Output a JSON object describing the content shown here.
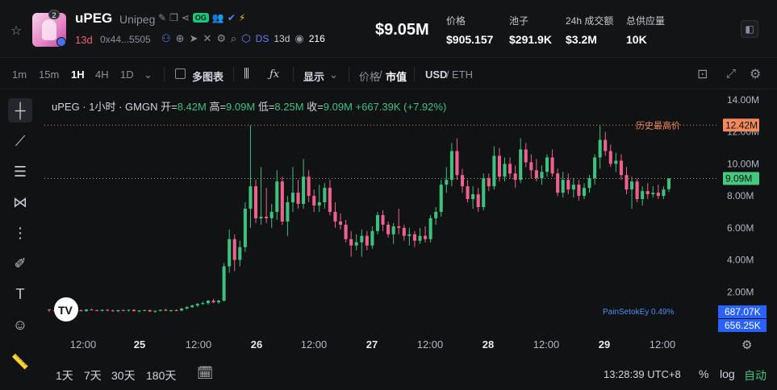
{
  "header": {
    "token_symbol": "uPEG",
    "token_name": "Unipeg",
    "avatar_badge": "2",
    "og_badge": "OG",
    "age": "13d",
    "address": "0x44...5505",
    "ds_label": "DS",
    "ds_age": "13d",
    "views": "216",
    "price": "$9.05M",
    "stats": [
      {
        "label": "价格",
        "value": "$905.157"
      },
      {
        "label": "池子",
        "value": "$291.9K"
      },
      {
        "label": "24h 成交额",
        "value": "$3.2M"
      },
      {
        "label": "总供应量",
        "value": "10K"
      }
    ]
  },
  "toolbar": {
    "intervals": [
      "1m",
      "15m",
      "1H",
      "4H",
      "1D"
    ],
    "active_interval": "1H",
    "multi_chart": "多图表",
    "display": "显示",
    "price_label": "价格",
    "slash": "/",
    "mcap_label": "市值",
    "usd_label": "USD",
    "eth_label": "ETH"
  },
  "legend": {
    "title": "uPEG · 1小时 · GMGN",
    "open_label": "开=",
    "open": "8.42M",
    "high_label": "高=",
    "high": "9.09M",
    "low_label": "低=",
    "low": "8.25M",
    "close_label": "收=",
    "close": "9.09M",
    "change": "+667.39K (+7.92%)"
  },
  "colors": {
    "up": "#3ec07f",
    "down": "#f0618d",
    "ath": "#f08a5d",
    "price_tag": "#46c97f",
    "blue_tag": "#2962ff"
  },
  "chart_data": {
    "type": "candlestick",
    "ylim": [
      0,
      14.6
    ],
    "y_ticks": [
      "14.00M",
      "12.00M",
      "10.00M",
      "8.00M",
      "6.00M",
      "4.00M",
      "2.00M"
    ],
    "y_tick_values": [
      14,
      12,
      10,
      8,
      6,
      4,
      2
    ],
    "x_ticks": [
      "12:00",
      "25",
      "12:00",
      "26",
      "12:00",
      "27",
      "12:00",
      "28",
      "12:00",
      "29",
      "12:00"
    ],
    "ath_label": "历史最高价",
    "ath_value": 12.42,
    "ath_tag": "12.42M",
    "current_value": 9.09,
    "current_tag": "9.09M",
    "marker_text": "PainSetokEy 0.49%",
    "marker_tag_1": "687.07K",
    "marker_tag_2": "656.25K",
    "candles": [
      [
        0.9,
        0.95,
        0.75,
        0.85
      ],
      [
        0.85,
        0.9,
        0.8,
        0.82
      ],
      [
        0.82,
        0.9,
        0.78,
        0.88
      ],
      [
        0.88,
        0.92,
        0.8,
        0.84
      ],
      [
        0.84,
        0.92,
        0.8,
        0.9
      ],
      [
        0.9,
        0.95,
        0.82,
        0.86
      ],
      [
        0.86,
        0.9,
        0.78,
        0.8
      ],
      [
        0.8,
        0.92,
        0.76,
        0.9
      ],
      [
        0.9,
        0.95,
        0.84,
        0.86
      ],
      [
        0.86,
        0.9,
        0.8,
        0.82
      ],
      [
        0.82,
        0.9,
        0.78,
        0.88
      ],
      [
        0.88,
        0.92,
        0.8,
        0.84
      ],
      [
        0.84,
        0.9,
        0.76,
        0.8
      ],
      [
        0.8,
        0.88,
        0.74,
        0.86
      ],
      [
        0.86,
        0.92,
        0.8,
        0.84
      ],
      [
        0.84,
        0.9,
        0.78,
        0.88
      ],
      [
        0.88,
        0.92,
        0.78,
        0.8
      ],
      [
        0.8,
        0.86,
        0.72,
        0.84
      ],
      [
        0.84,
        0.9,
        0.8,
        0.86
      ],
      [
        0.86,
        0.9,
        0.76,
        0.78
      ],
      [
        0.78,
        0.84,
        0.7,
        0.82
      ],
      [
        0.82,
        0.9,
        0.78,
        0.88
      ],
      [
        0.88,
        0.95,
        0.8,
        0.82
      ],
      [
        0.82,
        0.88,
        0.76,
        0.86
      ],
      [
        0.86,
        0.92,
        0.8,
        0.84
      ],
      [
        0.84,
        1.0,
        0.8,
        0.96
      ],
      [
        0.96,
        1.1,
        0.9,
        1.05
      ],
      [
        1.05,
        1.2,
        1.0,
        1.15
      ],
      [
        1.15,
        1.3,
        1.05,
        1.25
      ],
      [
        1.25,
        1.4,
        1.2,
        1.3
      ],
      [
        1.3,
        1.5,
        1.2,
        1.45
      ],
      [
        1.45,
        1.55,
        1.3,
        1.35
      ],
      [
        1.35,
        1.5,
        1.25,
        1.45
      ],
      [
        1.45,
        3.8,
        1.4,
        3.6
      ],
      [
        3.6,
        5.9,
        3.2,
        5.3
      ],
      [
        5.3,
        5.6,
        3.3,
        4.0
      ],
      [
        4.0,
        5.2,
        3.6,
        4.8
      ],
      [
        4.8,
        7.6,
        4.5,
        7.2
      ],
      [
        7.2,
        12.4,
        6.0,
        8.6
      ],
      [
        8.6,
        9.0,
        6.3,
        6.6
      ],
      [
        6.6,
        9.8,
        6.2,
        6.7
      ],
      [
        6.7,
        8.5,
        6.3,
        6.6
      ],
      [
        6.6,
        7.5,
        6.0,
        7.0
      ],
      [
        7.0,
        9.6,
        6.5,
        8.9
      ],
      [
        8.9,
        9.2,
        6.2,
        6.4
      ],
      [
        6.4,
        8.0,
        5.5,
        7.6
      ],
      [
        7.6,
        9.8,
        7.0,
        8.2
      ],
      [
        8.2,
        9.0,
        7.2,
        7.5
      ],
      [
        7.5,
        10.3,
        7.2,
        9.2
      ],
      [
        9.2,
        9.6,
        7.6,
        8.0
      ],
      [
        8.0,
        8.4,
        7.0,
        7.4
      ],
      [
        7.4,
        8.7,
        7.0,
        7.6
      ],
      [
        7.6,
        8.8,
        7.2,
        8.5
      ],
      [
        8.5,
        9.0,
        6.8,
        7.0
      ],
      [
        7.0,
        7.6,
        6.0,
        6.4
      ],
      [
        6.4,
        6.9,
        5.9,
        6.2
      ],
      [
        6.2,
        6.5,
        5.1,
        5.3
      ],
      [
        5.3,
        5.8,
        4.2,
        4.9
      ],
      [
        4.9,
        5.6,
        4.6,
        5.1
      ],
      [
        5.1,
        5.9,
        4.2,
        5.5
      ],
      [
        5.5,
        5.8,
        4.6,
        4.9
      ],
      [
        4.9,
        6.1,
        4.7,
        5.8
      ],
      [
        5.8,
        7.0,
        5.6,
        6.8
      ],
      [
        6.8,
        7.1,
        5.8,
        6.2
      ],
      [
        6.2,
        6.4,
        5.4,
        5.6
      ],
      [
        5.6,
        6.3,
        5.0,
        6.1
      ],
      [
        6.1,
        7.2,
        5.6,
        6.0
      ],
      [
        6.0,
        6.2,
        5.2,
        5.5
      ],
      [
        5.5,
        6.0,
        4.9,
        5.6
      ],
      [
        5.6,
        5.8,
        4.8,
        5.2
      ],
      [
        5.2,
        6.0,
        5.0,
        5.5
      ],
      [
        5.5,
        6.1,
        5.1,
        5.3
      ],
      [
        5.3,
        6.8,
        5.1,
        6.6
      ],
      [
        6.6,
        7.3,
        6.2,
        7.0
      ],
      [
        7.0,
        9.0,
        6.7,
        8.7
      ],
      [
        8.7,
        9.8,
        8.2,
        9.0
      ],
      [
        9.0,
        11.3,
        8.6,
        10.8
      ],
      [
        10.8,
        11.6,
        9.0,
        9.3
      ],
      [
        9.3,
        9.7,
        8.2,
        8.6
      ],
      [
        8.6,
        9.0,
        7.6,
        7.8
      ],
      [
        7.8,
        8.6,
        7.2,
        8.1
      ],
      [
        8.1,
        8.5,
        7.0,
        7.3
      ],
      [
        7.3,
        9.4,
        7.1,
        9.1
      ],
      [
        9.1,
        9.4,
        8.3,
        8.6
      ],
      [
        8.6,
        11.1,
        8.4,
        10.5
      ],
      [
        10.5,
        11.0,
        8.9,
        9.2
      ],
      [
        9.2,
        10.4,
        8.9,
        10.0
      ],
      [
        10.0,
        10.4,
        9.1,
        9.4
      ],
      [
        9.4,
        9.9,
        8.5,
        9.0
      ],
      [
        9.0,
        11.6,
        8.8,
        10.9
      ],
      [
        10.9,
        11.3,
        9.8,
        10.1
      ],
      [
        10.1,
        10.6,
        9.1,
        9.6
      ],
      [
        9.6,
        10.3,
        8.9,
        9.1
      ],
      [
        9.1,
        9.9,
        8.7,
        9.5
      ],
      [
        9.5,
        10.6,
        9.2,
        10.4
      ],
      [
        10.4,
        10.9,
        9.2,
        9.4
      ],
      [
        9.4,
        9.7,
        8.0,
        8.2
      ],
      [
        8.2,
        9.5,
        7.9,
        9.0
      ],
      [
        9.0,
        9.4,
        8.1,
        8.4
      ],
      [
        8.4,
        9.1,
        7.9,
        8.7
      ],
      [
        8.7,
        9.0,
        7.7,
        8.0
      ],
      [
        8.0,
        8.8,
        7.8,
        8.5
      ],
      [
        8.5,
        9.3,
        8.2,
        9.1
      ],
      [
        9.1,
        10.6,
        8.7,
        10.4
      ],
      [
        10.4,
        12.4,
        9.7,
        11.5
      ],
      [
        11.5,
        12.0,
        10.5,
        10.8
      ],
      [
        10.8,
        11.2,
        9.8,
        10.0
      ],
      [
        10.0,
        10.7,
        9.5,
        10.2
      ],
      [
        10.2,
        10.6,
        9.0,
        9.3
      ],
      [
        9.3,
        9.8,
        8.1,
        8.4
      ],
      [
        8.4,
        9.2,
        7.2,
        8.9
      ],
      [
        8.9,
        9.1,
        7.6,
        7.8
      ],
      [
        7.8,
        8.6,
        7.4,
        8.3
      ],
      [
        8.3,
        8.8,
        7.8,
        8.1
      ],
      [
        8.1,
        8.6,
        7.9,
        8.2
      ],
      [
        8.2,
        8.7,
        7.8,
        8.0
      ],
      [
        8.0,
        8.6,
        7.8,
        8.4
      ],
      [
        8.42,
        9.09,
        8.25,
        9.09
      ]
    ]
  },
  "left_tools": [
    "crosshair-icon",
    "trendline-icon",
    "fib-icon",
    "pattern-icon",
    "ruler-adjust-icon",
    "brush-icon",
    "text-tool-icon",
    "emoji-icon",
    "measure-icon"
  ],
  "footer": {
    "ranges": [
      "1天",
      "7天",
      "30天",
      "180天"
    ],
    "clock": "13:28:39 UTC+8",
    "percent": "%",
    "log": "log",
    "auto": "自动"
  }
}
